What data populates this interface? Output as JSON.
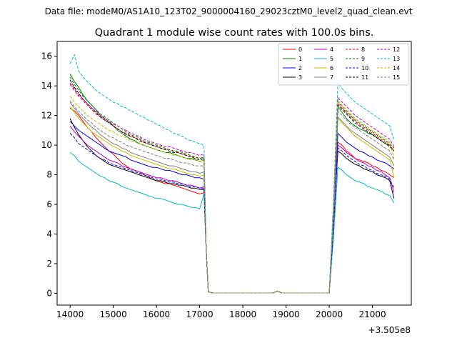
{
  "suptitle": "Data file: modeM0/AS1A10_123T02_9000004160_29023cztM0_level2_quad_clean.evt",
  "chart_data": {
    "type": "line",
    "title": "Quadrant 1 module wise count rates with 100.0s bins.",
    "xlabel": "",
    "ylabel": "",
    "x_offset_label": "+3.505e8",
    "x_offset": 350500000,
    "xlim": [
      13700,
      21900
    ],
    "ylim": [
      -0.8,
      17.0
    ],
    "xticks": [
      14000,
      15000,
      16000,
      17000,
      18000,
      19000,
      20000,
      21000
    ],
    "yticks": [
      0,
      2,
      4,
      6,
      8,
      10,
      12,
      14,
      16
    ],
    "legend_position": "top-right",
    "legend_columns": 4,
    "x_bins": {
      "start": 14000,
      "step": 100,
      "count": 16,
      "note": "series values listed for x = 14000..17200 and 20000..21500; x = 17200..20000 are ~0 (small bump ~0.15 near 18800)"
    },
    "series": [
      {
        "name": "0",
        "color": "#ff0000",
        "style": "solid",
        "pre": [
          12.5,
          12.3,
          12.0,
          11.6,
          11.2,
          10.9,
          10.5,
          10.2,
          9.9,
          9.6,
          9.4,
          9.1,
          8.8,
          8.6,
          8.4,
          8.3,
          8.2,
          8.0,
          7.9,
          7.7,
          7.6,
          7.5,
          7.4,
          7.4,
          7.3,
          7.2,
          7.1,
          7.0,
          6.9,
          6.8,
          6.7,
          6.8
        ],
        "post": [
          0,
          4.5,
          10.2,
          10.0,
          9.6,
          9.4,
          9.1,
          9.0,
          8.9,
          8.8,
          8.6,
          8.5,
          8.3,
          8.2,
          8.0,
          7.8
        ]
      },
      {
        "name": "1",
        "color": "#008000",
        "style": "solid",
        "pre": [
          14.8,
          14.3,
          13.9,
          13.4,
          13.0,
          12.7,
          12.4,
          12.0,
          11.8,
          11.6,
          11.3,
          11.0,
          10.8,
          10.6,
          10.4,
          10.3,
          10.1,
          10.0,
          9.9,
          9.8,
          9.7,
          9.6,
          9.5,
          9.5,
          9.4,
          9.3,
          9.2,
          9.1,
          9.1,
          9.0,
          8.9,
          9.0
        ],
        "post": [
          0,
          5.5,
          12.6,
          12.2,
          11.8,
          11.5,
          11.3,
          11.1,
          11.0,
          10.8,
          10.7,
          10.5,
          10.3,
          10.1,
          10.0,
          9.6
        ]
      },
      {
        "name": "2",
        "color": "#0000ff",
        "style": "solid",
        "pre": [
          11.6,
          11.3,
          11.0,
          10.8,
          10.6,
          10.4,
          10.2,
          10.0,
          9.8,
          9.6,
          9.5,
          9.4,
          9.3,
          9.2,
          9.0,
          8.9,
          8.8,
          8.7,
          8.6,
          8.5,
          8.5,
          8.4,
          8.3,
          8.3,
          8.2,
          8.1,
          8.0,
          8.0,
          7.9,
          7.8,
          7.8,
          7.7
        ],
        "post": [
          0,
          5.0,
          10.8,
          10.5,
          10.2,
          10.0,
          9.8,
          9.6,
          9.5,
          9.3,
          9.2,
          9.0,
          8.9,
          8.8,
          8.6,
          8.4
        ]
      },
      {
        "name": "3",
        "color": "#000000",
        "style": "solid",
        "pre": [
          11.8,
          11.2,
          10.7,
          10.3,
          9.9,
          9.6,
          9.3,
          9.1,
          8.9,
          8.7,
          8.6,
          8.5,
          8.4,
          8.3,
          8.2,
          8.1,
          8.0,
          7.9,
          7.8,
          7.7,
          7.6,
          7.6,
          7.5,
          7.4,
          7.4,
          7.3,
          7.3,
          7.2,
          7.1,
          7.1,
          7.0,
          7.0
        ],
        "post": [
          0,
          4.8,
          9.6,
          9.4,
          9.1,
          8.9,
          8.7,
          8.6,
          8.4,
          8.3,
          8.2,
          8.0,
          7.9,
          7.8,
          7.6,
          6.4
        ]
      },
      {
        "name": "4",
        "color": "#bf00bf",
        "style": "solid",
        "pre": [
          11.3,
          10.9,
          10.6,
          10.3,
          10.0,
          9.8,
          9.6,
          9.4,
          9.2,
          9.0,
          8.9,
          8.8,
          8.6,
          8.5,
          8.4,
          8.3,
          8.2,
          8.1,
          8.0,
          7.9,
          7.8,
          7.8,
          7.7,
          7.6,
          7.6,
          7.5,
          7.4,
          7.3,
          7.3,
          7.2,
          7.1,
          7.2
        ],
        "post": [
          0,
          4.6,
          10.0,
          9.8,
          9.5,
          9.3,
          9.1,
          8.9,
          8.8,
          8.6,
          8.5,
          8.3,
          8.2,
          8.0,
          7.8,
          6.8
        ]
      },
      {
        "name": "5",
        "color": "#00bfbf",
        "style": "solid",
        "pre": [
          9.5,
          9.3,
          8.9,
          8.7,
          8.5,
          8.3,
          8.1,
          7.9,
          7.8,
          7.6,
          7.5,
          7.4,
          7.2,
          7.1,
          7.0,
          6.9,
          6.8,
          6.7,
          6.6,
          6.5,
          6.4,
          6.4,
          6.3,
          6.2,
          6.1,
          6.0,
          6.0,
          5.9,
          5.8,
          5.8,
          5.7,
          6.7
        ],
        "post": [
          0,
          3.8,
          8.5,
          8.3,
          8.0,
          7.8,
          7.6,
          7.5,
          7.4,
          7.2,
          7.1,
          7.0,
          6.9,
          6.7,
          6.6,
          6.1
        ]
      },
      {
        "name": "6",
        "color": "#bfbf00",
        "style": "solid",
        "pre": [
          12.6,
          12.2,
          11.8,
          11.5,
          11.2,
          10.9,
          10.7,
          10.5,
          10.3,
          10.1,
          9.9,
          9.8,
          9.6,
          9.5,
          9.3,
          9.2,
          9.1,
          9.0,
          8.9,
          8.8,
          8.7,
          8.6,
          8.5,
          8.4,
          8.4,
          8.3,
          8.2,
          8.1,
          8.0,
          8.0,
          7.9,
          8.0
        ],
        "post": [
          0,
          5.2,
          11.8,
          11.5,
          11.2,
          10.9,
          10.6,
          10.4,
          10.2,
          10.0,
          9.8,
          9.6,
          9.4,
          9.2,
          9.0,
          7.8
        ]
      },
      {
        "name": "7",
        "color": "#808080",
        "style": "solid",
        "pre": [
          12.9,
          12.5,
          12.1,
          11.8,
          11.5,
          11.2,
          11.0,
          10.7,
          10.5,
          10.3,
          10.1,
          10.0,
          9.8,
          9.7,
          9.5,
          9.4,
          9.3,
          9.2,
          9.1,
          9.0,
          8.9,
          8.8,
          8.7,
          8.6,
          8.6,
          8.5,
          8.4,
          8.3,
          8.2,
          8.2,
          8.1,
          8.2
        ],
        "post": [
          0,
          5.3,
          11.9,
          11.6,
          11.3,
          11.0,
          10.8,
          10.6,
          10.4,
          10.2,
          10.0,
          9.8,
          9.6,
          9.4,
          9.2,
          8.6
        ]
      },
      {
        "name": "8",
        "color": "#ff0000",
        "style": "dashed",
        "pre": [
          14.1,
          13.7,
          13.3,
          13.0,
          12.7,
          12.4,
          12.1,
          11.9,
          11.7,
          11.5,
          11.3,
          11.1,
          10.9,
          10.8,
          10.6,
          10.5,
          10.4,
          10.2,
          10.1,
          10.0,
          9.9,
          9.8,
          9.7,
          9.7,
          9.6,
          9.5,
          9.4,
          9.3,
          9.2,
          9.2,
          9.1,
          9.2
        ],
        "post": [
          0,
          5.7,
          12.8,
          12.5,
          12.2,
          11.9,
          11.6,
          11.4,
          11.2,
          11.0,
          10.8,
          10.6,
          10.4,
          10.2,
          10.0,
          9.6
        ]
      },
      {
        "name": "9",
        "color": "#008000",
        "style": "dashed",
        "pre": [
          14.6,
          14.1,
          13.7,
          13.3,
          13.0,
          12.7,
          12.4,
          12.1,
          11.9,
          11.7,
          11.5,
          11.3,
          11.1,
          10.9,
          10.7,
          10.6,
          10.5,
          10.3,
          10.2,
          10.1,
          10.0,
          9.9,
          9.8,
          9.7,
          9.6,
          9.6,
          9.5,
          9.4,
          9.3,
          9.2,
          9.1,
          9.2
        ],
        "post": [
          0,
          5.8,
          12.9,
          12.6,
          12.3,
          12.0,
          11.7,
          11.5,
          11.3,
          11.1,
          10.9,
          10.7,
          10.5,
          10.3,
          10.1,
          9.8
        ]
      },
      {
        "name": "10",
        "color": "#0000ff",
        "style": "dashed",
        "pre": [
          10.8,
          10.5,
          10.1,
          9.9,
          9.7,
          9.5,
          9.3,
          9.1,
          9.0,
          8.8,
          8.7,
          8.6,
          8.5,
          8.4,
          8.3,
          8.2,
          8.1,
          8.0,
          7.9,
          7.8,
          7.7,
          7.7,
          7.6,
          7.5,
          7.5,
          7.4,
          7.4,
          7.3,
          7.2,
          7.2,
          7.1,
          7.1
        ],
        "post": [
          0,
          4.4,
          9.8,
          9.6,
          9.3,
          9.1,
          8.9,
          8.7,
          8.6,
          8.4,
          8.3,
          8.1,
          8.0,
          7.9,
          7.7,
          7.1
        ]
      },
      {
        "name": "11",
        "color": "#000000",
        "style": "dashed",
        "pre": [
          14.4,
          13.9,
          13.5,
          13.1,
          12.8,
          12.5,
          12.2,
          11.9,
          11.7,
          11.5,
          11.3,
          11.1,
          10.9,
          10.7,
          10.6,
          10.5,
          10.3,
          10.2,
          10.1,
          10.0,
          9.9,
          9.8,
          9.7,
          9.6,
          9.5,
          9.5,
          9.4,
          9.3,
          9.2,
          9.1,
          9.0,
          9.1
        ],
        "post": [
          0,
          5.9,
          12.7,
          12.4,
          12.1,
          11.8,
          11.5,
          11.3,
          11.1,
          10.9,
          10.7,
          10.5,
          10.3,
          10.1,
          9.9,
          9.6
        ]
      },
      {
        "name": "12",
        "color": "#bf00bf",
        "style": "dashed",
        "pre": [
          14.2,
          13.8,
          13.4,
          13.1,
          12.8,
          12.5,
          12.3,
          12.0,
          11.8,
          11.6,
          11.4,
          11.3,
          11.1,
          11.0,
          10.8,
          10.7,
          10.6,
          10.4,
          10.3,
          10.2,
          10.1,
          10.0,
          9.9,
          9.9,
          9.8,
          9.7,
          9.6,
          9.5,
          9.5,
          9.4,
          9.3,
          9.4
        ],
        "post": [
          0,
          5.8,
          13.2,
          12.9,
          12.6,
          12.3,
          12.0,
          11.8,
          11.6,
          11.4,
          11.2,
          11.0,
          10.8,
          10.6,
          10.4,
          9.9
        ]
      },
      {
        "name": "13",
        "color": "#00bfbf",
        "style": "dashed",
        "pre": [
          15.5,
          16.1,
          15.0,
          14.6,
          14.3,
          14.0,
          13.7,
          13.5,
          13.3,
          13.1,
          12.9,
          12.8,
          12.6,
          12.5,
          12.3,
          12.2,
          12.0,
          11.9,
          11.7,
          11.6,
          11.4,
          11.3,
          11.1,
          11.0,
          10.8,
          10.7,
          10.6,
          10.4,
          10.3,
          10.2,
          10.1,
          10.0
        ],
        "post": [
          0,
          6.4,
          14.2,
          13.8,
          13.5,
          13.2,
          12.9,
          12.7,
          12.5,
          12.3,
          12.1,
          11.9,
          11.7,
          11.5,
          11.3,
          10.3
        ]
      },
      {
        "name": "14",
        "color": "#bfbf00",
        "style": "dashed",
        "pre": [
          13.3,
          12.9,
          12.6,
          12.3,
          12.0,
          11.8,
          11.6,
          11.4,
          11.2,
          11.0,
          10.9,
          10.7,
          10.6,
          10.5,
          10.3,
          10.2,
          10.1,
          10.0,
          9.9,
          9.8,
          9.7,
          9.6,
          9.5,
          9.4,
          9.3,
          9.3,
          9.2,
          9.1,
          9.0,
          9.0,
          8.9,
          9.0
        ],
        "post": [
          0,
          5.6,
          13.0,
          12.7,
          12.4,
          12.1,
          11.8,
          11.6,
          11.4,
          11.2,
          11.0,
          10.8,
          10.6,
          10.4,
          10.2,
          9.1
        ]
      },
      {
        "name": "15",
        "color": "#808080",
        "style": "dashed",
        "pre": [
          13.0,
          12.6,
          12.3,
          12.0,
          11.7,
          11.5,
          11.2,
          11.0,
          10.8,
          10.6,
          10.5,
          10.3,
          10.2,
          10.0,
          9.9,
          9.8,
          9.7,
          9.6,
          9.5,
          9.4,
          9.3,
          9.2,
          9.1,
          9.1,
          9.0,
          8.9,
          8.8,
          8.8,
          8.7,
          8.6,
          8.6,
          8.6
        ],
        "post": [
          0,
          5.4,
          12.3,
          12.0,
          11.7,
          11.4,
          11.2,
          11.0,
          10.8,
          10.6,
          10.4,
          10.2,
          10.0,
          9.8,
          9.6,
          9.0
        ]
      }
    ]
  }
}
